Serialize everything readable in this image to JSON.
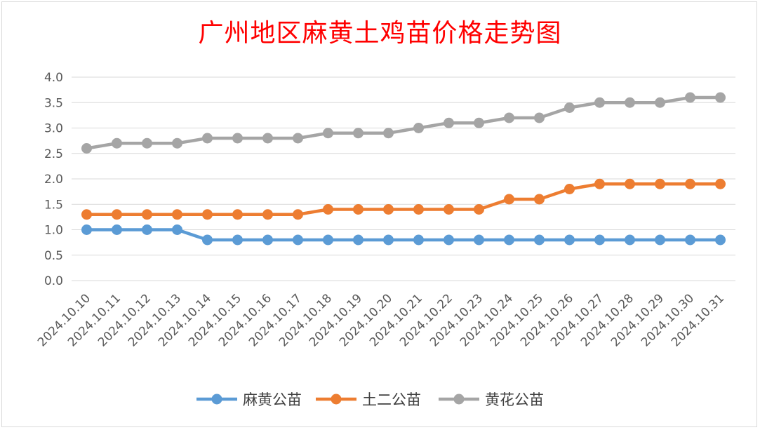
{
  "chart_data": {
    "type": "line",
    "title": "广州地区麻黄土鸡苗价格走势图",
    "xlabel": "",
    "ylabel": "",
    "ylim": [
      0,
      4
    ],
    "yticks": [
      "0.0",
      "0.5",
      "1.0",
      "1.5",
      "2.0",
      "2.5",
      "3.0",
      "3.5",
      "4.0"
    ],
    "grid": true,
    "legend_position": "bottom",
    "categories": [
      "2024.10.10",
      "2024.10.11",
      "2024.10.12",
      "2024.10.13",
      "2024.10.14",
      "2024.10.15",
      "2024.10.16",
      "2024.10.17",
      "2024.10.18",
      "2024.10.19",
      "2024.10.20",
      "2024.10.21",
      "2024.10.22",
      "2024.10.23",
      "2024.10.24",
      "2024.10.25",
      "2024.10.26",
      "2024.10.27",
      "2024.10.28",
      "2024.10.29",
      "2024.10.30",
      "2024.10.31"
    ],
    "series": [
      {
        "name": "麻黄公苗",
        "color": "#5b9bd5",
        "values": [
          1.0,
          1.0,
          1.0,
          1.0,
          0.8,
          0.8,
          0.8,
          0.8,
          0.8,
          0.8,
          0.8,
          0.8,
          0.8,
          0.8,
          0.8,
          0.8,
          0.8,
          0.8,
          0.8,
          0.8,
          0.8,
          0.8
        ]
      },
      {
        "name": "土二公苗",
        "color": "#ed7d31",
        "values": [
          1.3,
          1.3,
          1.3,
          1.3,
          1.3,
          1.3,
          1.3,
          1.3,
          1.4,
          1.4,
          1.4,
          1.4,
          1.4,
          1.4,
          1.6,
          1.6,
          1.8,
          1.9,
          1.9,
          1.9,
          1.9,
          1.9
        ]
      },
      {
        "name": "黄花公苗",
        "color": "#a5a5a5",
        "values": [
          2.6,
          2.7,
          2.7,
          2.7,
          2.8,
          2.8,
          2.8,
          2.8,
          2.9,
          2.9,
          2.9,
          3.0,
          3.1,
          3.1,
          3.2,
          3.2,
          3.4,
          3.5,
          3.5,
          3.5,
          3.6,
          3.6
        ]
      }
    ]
  }
}
